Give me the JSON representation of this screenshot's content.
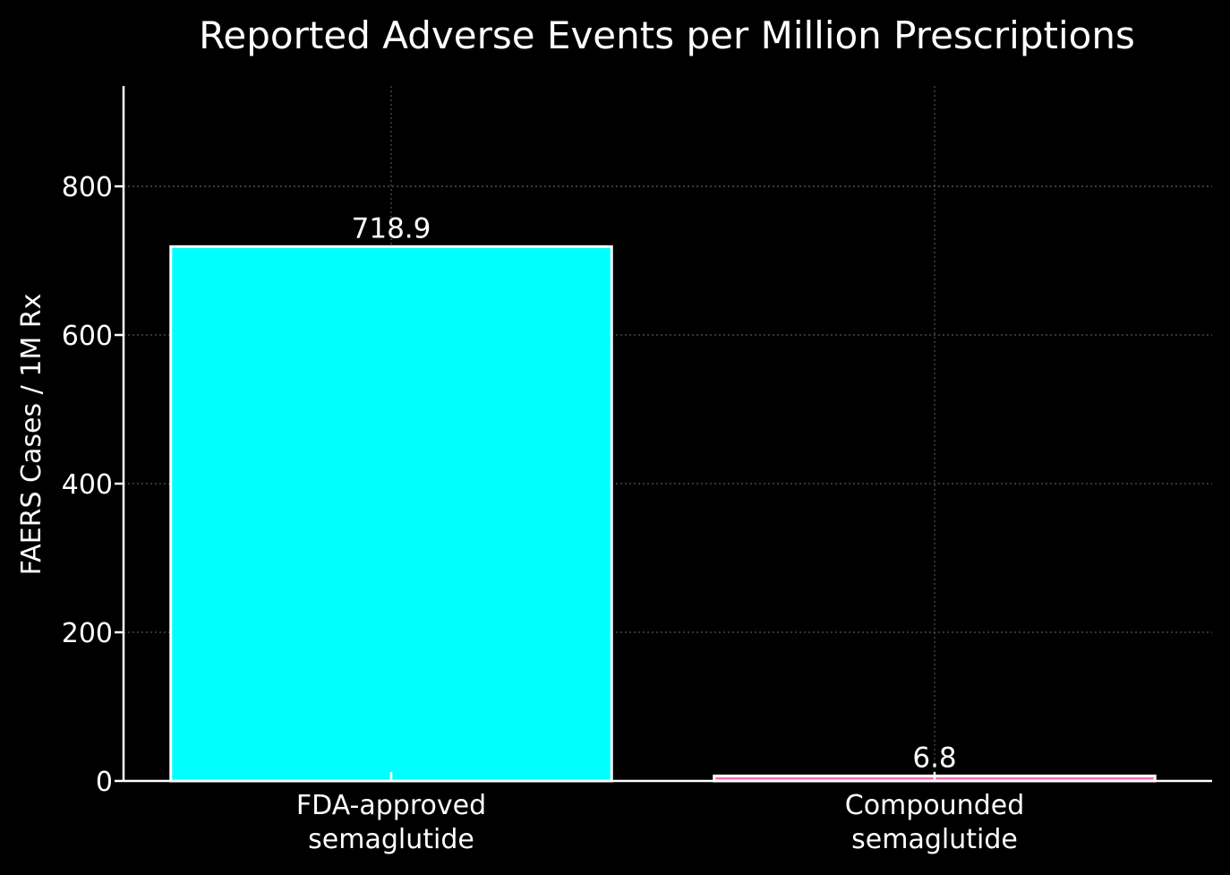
{
  "chart_data": {
    "type": "bar",
    "title": "Reported Adverse Events per Million Prescriptions",
    "xlabel": "",
    "ylabel": "FAERS Cases / 1M Rx",
    "categories": [
      [
        "FDA-approved",
        "semaglutide"
      ],
      [
        "Compounded",
        "semaglutide"
      ]
    ],
    "values": [
      718.9,
      6.8
    ],
    "value_labels": [
      "718.9",
      "6.8"
    ],
    "bar_colors": [
      "#00ffff",
      "#ff69b4"
    ],
    "bar_edge_color": "#ffffff",
    "ylim": [
      0,
      935
    ],
    "yticks": [
      0,
      200,
      400,
      600,
      800
    ],
    "grid": true,
    "background": "#000000",
    "text_color": "#ffffff"
  }
}
